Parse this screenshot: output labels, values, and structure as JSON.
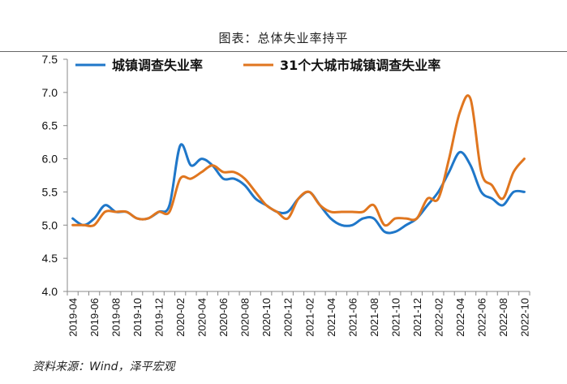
{
  "chart_data": {
    "type": "line",
    "title": "图表：总体失业率持平",
    "source": "资料来源：Wind，泽平宏观",
    "xlabel": "",
    "ylabel": "",
    "ylim": [
      4.0,
      7.5
    ],
    "yticks": [
      "4.0",
      "4.5",
      "5.0",
      "5.5",
      "6.0",
      "6.5",
      "7.0",
      "7.5"
    ],
    "xtick_labels": [
      "2019-04",
      "2019-06",
      "2019-08",
      "2019-10",
      "2019-12",
      "2020-02",
      "2020-04",
      "2020-06",
      "2020-08",
      "2020-10",
      "2020-12",
      "2021-02",
      "2021-04",
      "2021-06",
      "2021-08",
      "2021-10",
      "2021-12",
      "2022-02",
      "2022-04",
      "2022-06",
      "2022-08",
      "2022-10"
    ],
    "x": [
      "2019-04",
      "2019-05",
      "2019-06",
      "2019-07",
      "2019-08",
      "2019-09",
      "2019-10",
      "2019-11",
      "2019-12",
      "2020-01",
      "2020-02",
      "2020-03",
      "2020-04",
      "2020-05",
      "2020-06",
      "2020-07",
      "2020-08",
      "2020-09",
      "2020-10",
      "2020-11",
      "2020-12",
      "2021-01",
      "2021-02",
      "2021-03",
      "2021-04",
      "2021-05",
      "2021-06",
      "2021-07",
      "2021-08",
      "2021-09",
      "2021-10",
      "2021-11",
      "2021-12",
      "2022-01",
      "2022-02",
      "2022-03",
      "2022-04",
      "2022-05",
      "2022-06",
      "2022-07",
      "2022-08",
      "2022-09",
      "2022-10"
    ],
    "series": [
      {
        "name": "城镇调查失业率",
        "color": "#1F77C9",
        "values": [
          5.1,
          5.0,
          5.1,
          5.3,
          5.2,
          5.2,
          5.1,
          5.1,
          5.2,
          5.3,
          6.2,
          5.9,
          6.0,
          5.9,
          5.7,
          5.7,
          5.6,
          5.4,
          5.3,
          5.2,
          5.2,
          5.4,
          5.5,
          5.3,
          5.1,
          5.0,
          5.0,
          5.1,
          5.1,
          4.9,
          4.9,
          5.0,
          5.1,
          5.3,
          5.5,
          5.8,
          6.1,
          5.9,
          5.5,
          5.4,
          5.3,
          5.5,
          5.5
        ]
      },
      {
        "name": "31个大城市城镇调查失业率",
        "color": "#E0761F",
        "values": [
          5.0,
          5.0,
          5.0,
          5.2,
          5.2,
          5.2,
          5.1,
          5.1,
          5.2,
          5.2,
          5.7,
          5.7,
          5.8,
          5.9,
          5.8,
          5.8,
          5.7,
          5.5,
          5.3,
          5.2,
          5.1,
          5.4,
          5.5,
          5.3,
          5.2,
          5.2,
          5.2,
          5.2,
          5.3,
          5.0,
          5.1,
          5.1,
          5.1,
          5.4,
          5.4,
          6.0,
          6.7,
          6.9,
          5.8,
          5.6,
          5.4,
          5.8,
          6.0
        ]
      }
    ],
    "legend": "top"
  }
}
